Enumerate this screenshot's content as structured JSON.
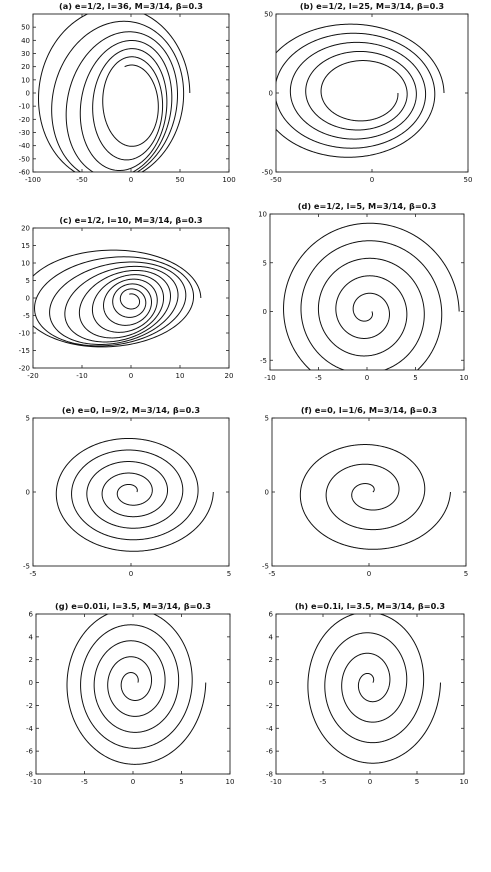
{
  "chart_data": [
    {
      "type": "line",
      "title": "(a)  e=1/2,  l=36,  M=3/14,  β=0.3",
      "xlim": [
        -100,
        100
      ],
      "ylim": [
        -60,
        60
      ],
      "xticks": [
        -100,
        -50,
        0,
        50,
        100
      ],
      "yticks": [
        -60,
        -50,
        -40,
        -30,
        -20,
        -10,
        0,
        10,
        20,
        30,
        40,
        50
      ],
      "grid": false,
      "curve": {
        "kind": "precessing_ellipses",
        "a_start": 80,
        "a_end": 28,
        "b_ratio": 0.85,
        "turns": 6
      }
    },
    {
      "type": "line",
      "title": "(b)  e=1/2,  l=25,  M=3/14,  β=0.3",
      "xlim": [
        -50,
        50
      ],
      "ylim": [
        -50,
        50
      ],
      "xticks": [
        -50,
        0,
        50
      ],
      "yticks": [
        -50,
        0,
        50
      ],
      "grid": false,
      "curve": {
        "kind": "nested_ellipses",
        "a_start": 50,
        "a_end": 18,
        "b_ratio": 0.9,
        "turns": 5
      }
    },
    {
      "type": "line",
      "title": "(c)  e=1/2,  l=10,  M=3/14,  β=0.3",
      "xlim": [
        -20,
        20
      ],
      "ylim": [
        -20,
        20
      ],
      "xticks": [
        -20,
        -10,
        0,
        10,
        20
      ],
      "yticks": [
        -20,
        -15,
        -10,
        -5,
        0,
        5,
        10,
        15,
        20
      ],
      "grid": false,
      "curve": {
        "kind": "precessing_ellipses",
        "a_start": 19,
        "a_end": 1.5,
        "b_ratio": 0.75,
        "turns": 9
      }
    },
    {
      "type": "line",
      "title": "(d)  e=1/2,  l=5,  M=3/14,  β=0.3",
      "xlim": [
        -10,
        10
      ],
      "ylim": [
        -6,
        10
      ],
      "xticks": [
        -10,
        -5,
        0,
        5,
        10
      ],
      "yticks": [
        -5,
        0,
        5,
        10
      ],
      "grid": false,
      "curve": {
        "kind": "spiral",
        "r_start": 9.5,
        "r_end": 0.5,
        "turns": 5,
        "cx": 0,
        "cy": 0
      }
    },
    {
      "type": "line",
      "title": "(e)  e=0,  l=9/2,  M=3/14,  β=0.3",
      "xlim": [
        -5,
        5
      ],
      "ylim": [
        -5,
        5
      ],
      "xticks": [
        -5,
        0,
        5
      ],
      "yticks": [
        -5,
        0,
        5
      ],
      "grid": false,
      "curve": {
        "kind": "spiral",
        "r_start": 0.3,
        "r_end": 4.2,
        "turns": 5,
        "cx": 0,
        "cy": 0
      }
    },
    {
      "type": "line",
      "title": "(f)  e=0,  l=1/6,  M=3/14,  β=0.3",
      "xlim": [
        -5,
        5
      ],
      "ylim": [
        -5,
        5
      ],
      "xticks": [
        -5,
        0,
        5
      ],
      "yticks": [
        -5,
        0,
        5
      ],
      "grid": false,
      "curve": {
        "kind": "spiral",
        "r_start": 0.2,
        "r_end": 4.2,
        "turns": 3,
        "cx": 0,
        "cy": 0
      }
    },
    {
      "type": "line",
      "title": "(g)  e=0.01i,  l=3.5,  M=3/14,  β=0.3",
      "xlim": [
        -10,
        10
      ],
      "ylim": [
        -8,
        6
      ],
      "xticks": [
        -10,
        -5,
        0,
        5,
        10
      ],
      "yticks": [
        -8,
        -6,
        -4,
        -2,
        0,
        2,
        4,
        6
      ],
      "grid": false,
      "curve": {
        "kind": "spiral",
        "r_start": 0.5,
        "r_end": 7.5,
        "turns": 5,
        "cx": 0,
        "cy": 0
      }
    },
    {
      "type": "line",
      "title": "(h)  e=0.1i,  l=3.5,  M=3/14,  β=0.3",
      "xlim": [
        -10,
        10
      ],
      "ylim": [
        -8,
        6
      ],
      "xticks": [
        -10,
        -5,
        0,
        5,
        10
      ],
      "yticks": [
        -8,
        -6,
        -4,
        -2,
        0,
        2,
        4,
        6
      ],
      "grid": false,
      "curve": {
        "kind": "spiral",
        "r_start": 0.3,
        "r_end": 7.5,
        "turns": 4,
        "cx": 0,
        "cy": 0
      }
    }
  ]
}
